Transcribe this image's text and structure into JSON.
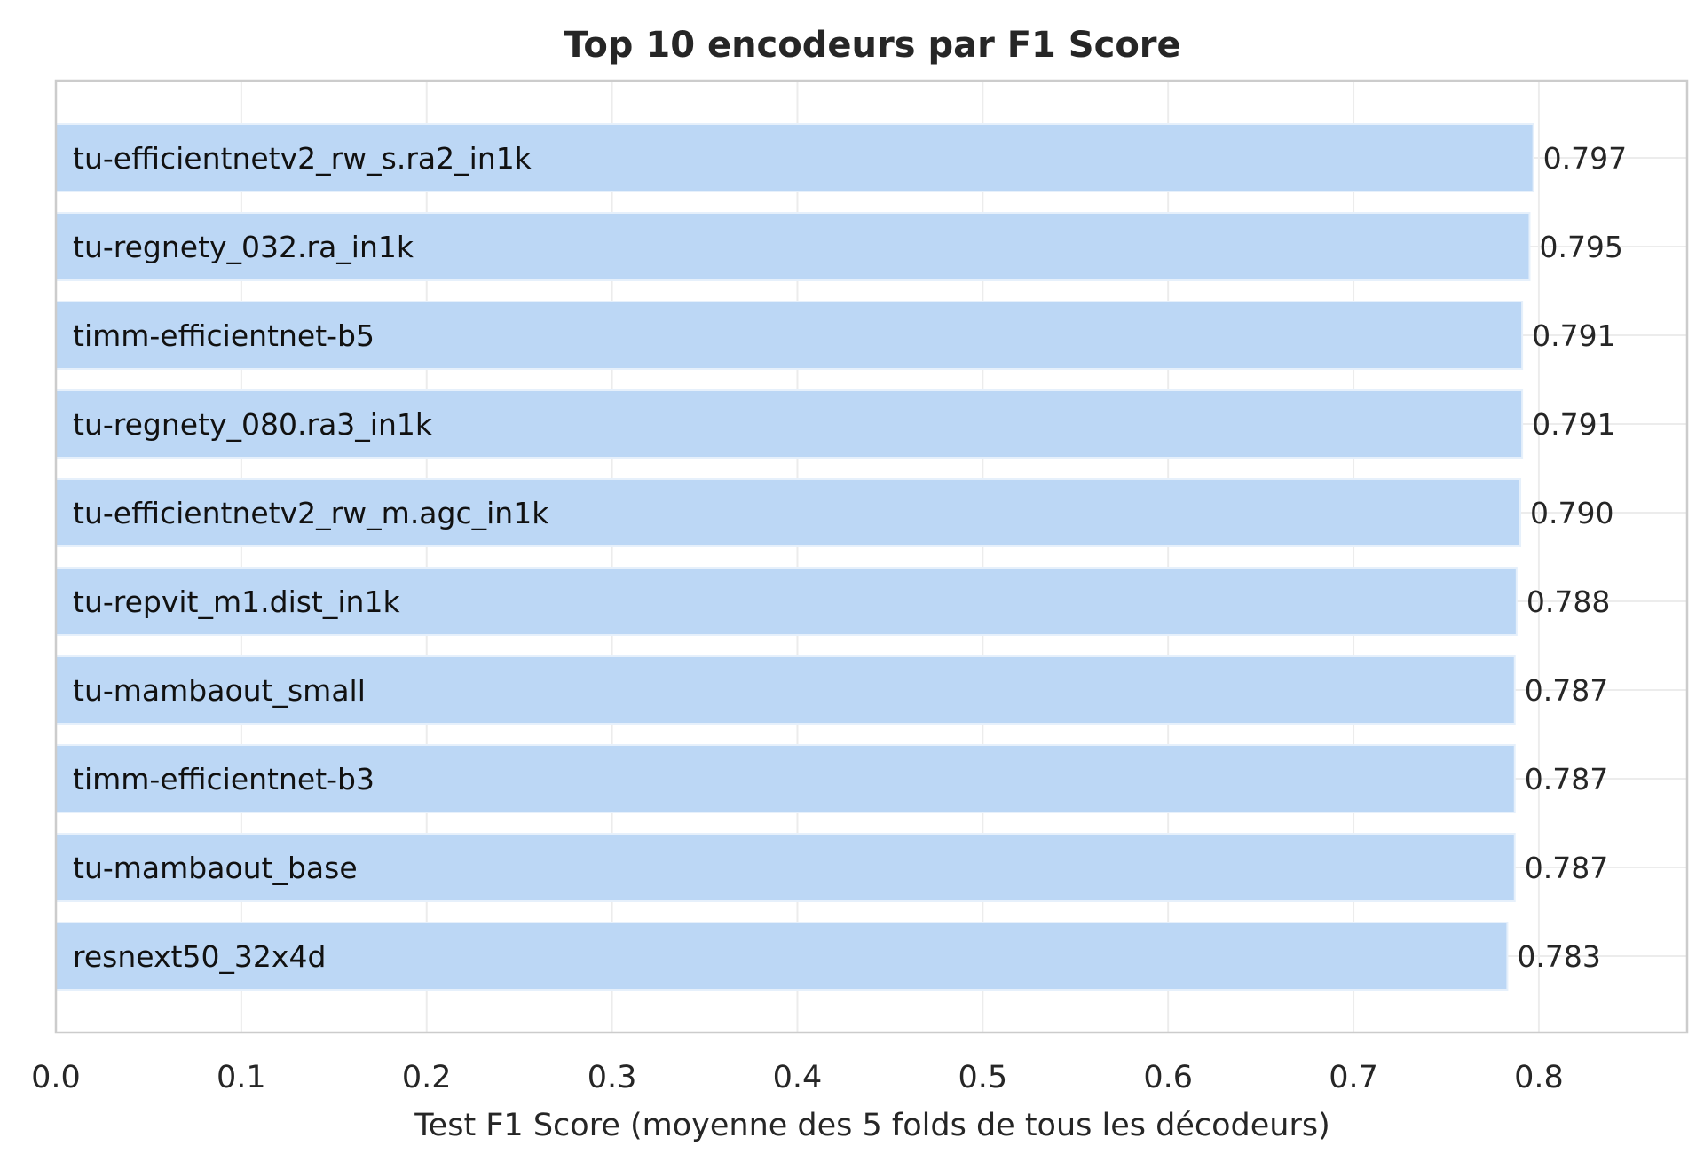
{
  "chart_data": {
    "type": "bar",
    "orientation": "horizontal",
    "title": "Top 10 encodeurs par F1 Score",
    "xlabel": "Test F1 Score (moyenne des 5 folds de tous les décodeurs)",
    "ylabel": "",
    "xlim": [
      0,
      0.88
    ],
    "xticks": [
      "0.0",
      "0.1",
      "0.2",
      "0.3",
      "0.4",
      "0.5",
      "0.6",
      "0.7",
      "0.8"
    ],
    "categories": [
      "tu-efficientnetv2_rw_s.ra2_in1k",
      "tu-regnety_032.ra_in1k",
      "timm-efficientnet-b5",
      "tu-regnety_080.ra3_in1k",
      "tu-efficientnetv2_rw_m.agc_in1k",
      "tu-repvit_m1.dist_in1k",
      "tu-mambaout_small",
      "timm-efficientnet-b3",
      "tu-mambaout_base",
      "resnext50_32x4d"
    ],
    "values": [
      0.797,
      0.795,
      0.791,
      0.791,
      0.79,
      0.788,
      0.787,
      0.787,
      0.787,
      0.783
    ],
    "value_labels": [
      "0.797",
      "0.795",
      "0.791",
      "0.791",
      "0.790",
      "0.788",
      "0.787",
      "0.787",
      "0.787",
      "0.783"
    ],
    "grid": true,
    "colors": {
      "bar": "#bcd7f5",
      "bar_edge": "#e6f0fb",
      "grid": "#ececec",
      "frame": "#cccccc",
      "text": "#262626"
    }
  }
}
